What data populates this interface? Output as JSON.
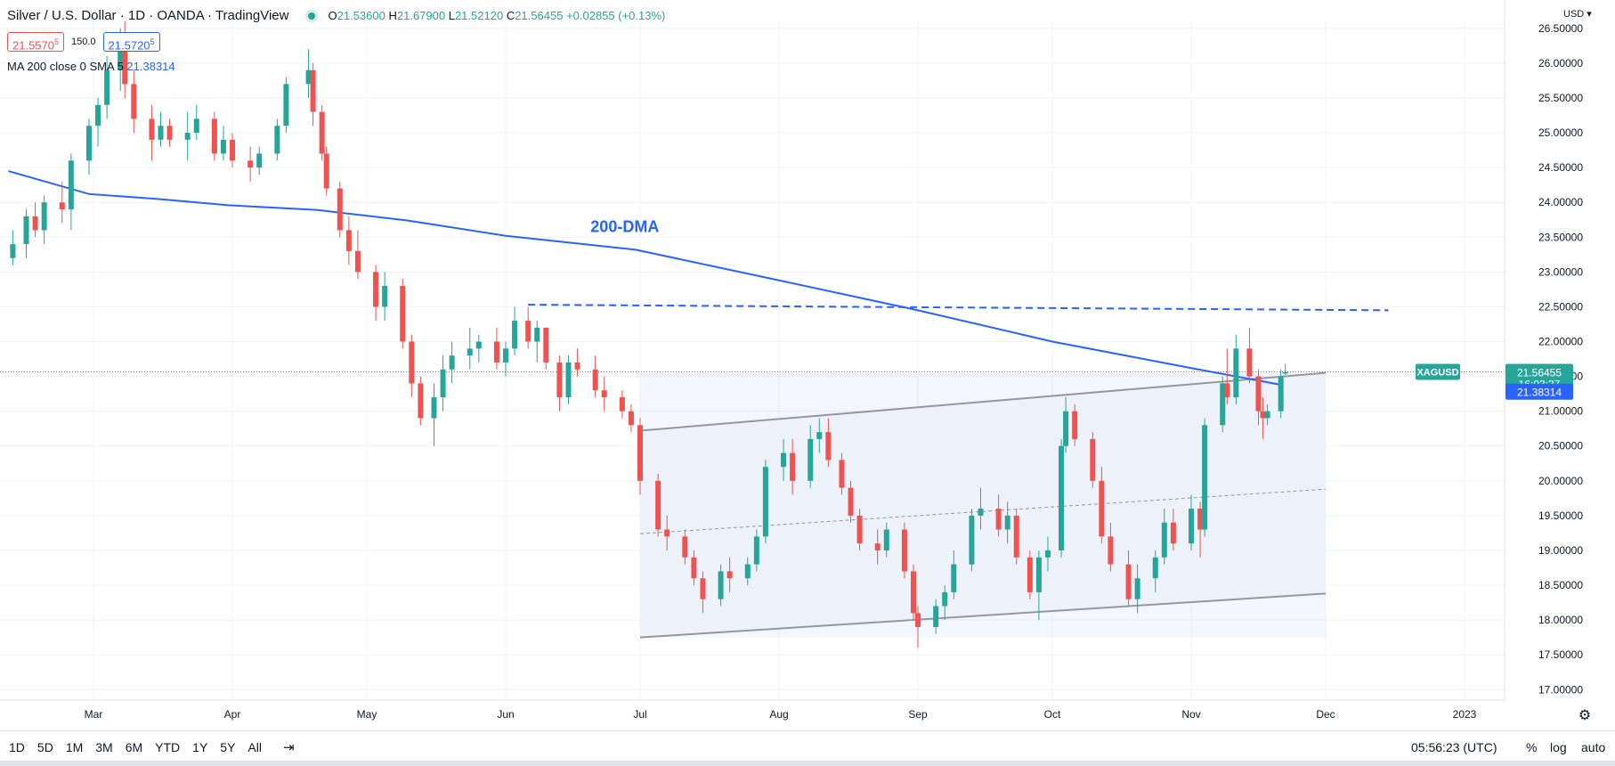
{
  "header": {
    "title": "Silver / U.S. Dollar · 1D · OANDA · TradingView",
    "open_label": "O",
    "open": "21.53600",
    "high_label": "H",
    "high": "21.67900",
    "low_label": "L",
    "low": "21.52120",
    "close_label": "C",
    "close": "21.56455",
    "change": "+0.02855 (+0.13%)"
  },
  "quote": {
    "sell": "21.5570",
    "sell_sup": "5",
    "spread": "150.0",
    "buy": "21.5720",
    "buy_sup": "5"
  },
  "ma_legend": {
    "label": "MA 200 close 0 SMA 5",
    "value": "21.38314"
  },
  "currency": "USD",
  "footer": {
    "ranges": [
      "1D",
      "5D",
      "1M",
      "3M",
      "6M",
      "YTD",
      "1Y",
      "5Y",
      "All"
    ],
    "clock": "05:56:23 (UTC)",
    "percent": "%",
    "log": "log",
    "auto": "auto"
  },
  "colors": {
    "up": "#26a69a",
    "down": "#ef5350",
    "ma": "#2962ff",
    "channel": "#9598a1"
  },
  "chart_data": {
    "type": "candlestick",
    "symbol": "XAGUSD",
    "ylim": [
      16.85,
      26.6
    ],
    "yticks": [
      "17.00000",
      "17.50000",
      "18.00000",
      "18.50000",
      "19.00000",
      "19.50000",
      "20.00000",
      "20.50000",
      "21.00000",
      "21.50000",
      "22.00000",
      "22.50000",
      "23.00000",
      "23.50000",
      "24.00000",
      "24.50000",
      "25.00000",
      "25.50000",
      "26.00000",
      "26.50000"
    ],
    "xticks": [
      {
        "label": "Mar",
        "date": "2022-03-01"
      },
      {
        "label": "Apr",
        "date": "2022-04-01"
      },
      {
        "label": "May",
        "date": "2022-05-01"
      },
      {
        "label": "Jun",
        "date": "2022-06-01"
      },
      {
        "label": "Jul",
        "date": "2022-07-01"
      },
      {
        "label": "Aug",
        "date": "2022-08-01"
      },
      {
        "label": "Sep",
        "date": "2022-09-01"
      },
      {
        "label": "Oct",
        "date": "2022-10-01"
      },
      {
        "label": "Nov",
        "date": "2022-11-01"
      },
      {
        "label": "Dec",
        "date": "2022-12-01"
      },
      {
        "label": "2023",
        "date": "2023-01-01"
      }
    ],
    "price_labels": {
      "last": "21.56455",
      "countdown": "16:03:37",
      "ma": "21.38314"
    },
    "annotation": "200-DMA",
    "ma200": [
      {
        "date": "2022-02-10",
        "value": 24.45
      },
      {
        "date": "2022-02-28",
        "value": 24.12
      },
      {
        "date": "2022-03-15",
        "value": 24.05
      },
      {
        "date": "2022-03-31",
        "value": 23.96
      },
      {
        "date": "2022-04-20",
        "value": 23.89
      },
      {
        "date": "2022-05-10",
        "value": 23.74
      },
      {
        "date": "2022-06-01",
        "value": 23.52
      },
      {
        "date": "2022-06-30",
        "value": 23.32
      },
      {
        "date": "2022-08-01",
        "value": 22.88
      },
      {
        "date": "2022-09-01",
        "value": 22.45
      },
      {
        "date": "2022-10-01",
        "value": 22.0
      },
      {
        "date": "2022-11-01",
        "value": 21.62
      },
      {
        "date": "2022-11-21",
        "value": 21.38
      }
    ],
    "resistance_dashed": {
      "from": {
        "date": "2022-06-06",
        "value": 22.53
      },
      "to": {
        "date": "2022-12-15",
        "value": 22.45
      }
    },
    "channel": {
      "upper": {
        "from": {
          "date": "2022-07-01",
          "value": 20.72
        },
        "to": {
          "date": "2022-12-01",
          "value": 21.55
        }
      },
      "lower": {
        "from": {
          "date": "2022-07-01",
          "value": 17.75
        },
        "to": {
          "date": "2022-12-01",
          "value": 18.38
        }
      },
      "mid": {
        "from": {
          "date": "2022-07-01",
          "value": 19.24
        },
        "to": {
          "date": "2022-12-01",
          "value": 19.88
        }
      }
    },
    "candles": [
      [
        "2022-02-11",
        23.2,
        23.6,
        23.1,
        23.4
      ],
      [
        "2022-02-14",
        23.4,
        23.9,
        23.2,
        23.8
      ],
      [
        "2022-02-16",
        23.8,
        24.0,
        23.5,
        23.6
      ],
      [
        "2022-02-18",
        23.6,
        24.1,
        23.4,
        24.0
      ],
      [
        "2022-02-22",
        24.0,
        24.3,
        23.7,
        23.9
      ],
      [
        "2022-02-24",
        23.9,
        24.7,
        23.6,
        24.6
      ],
      [
        "2022-02-28",
        24.6,
        25.2,
        24.4,
        25.1
      ],
      [
        "2022-03-02",
        25.1,
        25.5,
        24.8,
        25.4
      ],
      [
        "2022-03-04",
        25.4,
        26.1,
        25.2,
        25.9
      ],
      [
        "2022-03-07",
        25.9,
        26.5,
        25.6,
        26.2
      ],
      [
        "2022-03-08",
        26.2,
        26.6,
        25.5,
        25.7
      ],
      [
        "2022-03-10",
        25.7,
        25.9,
        25.0,
        25.2
      ],
      [
        "2022-03-14",
        25.2,
        25.4,
        24.6,
        24.9
      ],
      [
        "2022-03-16",
        24.9,
        25.3,
        24.8,
        25.1
      ],
      [
        "2022-03-18",
        25.1,
        25.2,
        24.8,
        24.9
      ],
      [
        "2022-03-22",
        24.9,
        25.3,
        24.6,
        25.0
      ],
      [
        "2022-03-24",
        25.0,
        25.4,
        24.9,
        25.2
      ],
      [
        "2022-03-28",
        25.2,
        25.3,
        24.6,
        24.7
      ],
      [
        "2022-03-30",
        24.7,
        25.1,
        24.6,
        24.9
      ],
      [
        "2022-04-01",
        24.9,
        25.0,
        24.5,
        24.6
      ],
      [
        "2022-04-05",
        24.6,
        24.8,
        24.3,
        24.5
      ],
      [
        "2022-04-07",
        24.5,
        24.8,
        24.4,
        24.7
      ],
      [
        "2022-04-11",
        24.7,
        25.2,
        24.6,
        25.1
      ],
      [
        "2022-04-13",
        25.1,
        25.8,
        25.0,
        25.7
      ],
      [
        "2022-04-18",
        25.7,
        26.2,
        25.5,
        25.9
      ],
      [
        "2022-04-19",
        25.9,
        26.0,
        25.1,
        25.3
      ],
      [
        "2022-04-21",
        25.3,
        25.4,
        24.6,
        24.7
      ],
      [
        "2022-04-22",
        24.7,
        24.8,
        24.1,
        24.2
      ],
      [
        "2022-04-25",
        24.2,
        24.3,
        23.5,
        23.6
      ],
      [
        "2022-04-27",
        23.6,
        23.8,
        23.1,
        23.3
      ],
      [
        "2022-04-29",
        23.3,
        23.6,
        22.9,
        23.0
      ],
      [
        "2022-05-03",
        23.0,
        23.1,
        22.3,
        22.5
      ],
      [
        "2022-05-05",
        22.5,
        23.0,
        22.3,
        22.8
      ],
      [
        "2022-05-09",
        22.8,
        22.9,
        21.9,
        22.0
      ],
      [
        "2022-05-11",
        22.0,
        22.1,
        21.2,
        21.4
      ],
      [
        "2022-05-13",
        21.4,
        21.5,
        20.8,
        20.9
      ],
      [
        "2022-05-16",
        20.9,
        21.4,
        20.5,
        21.2
      ],
      [
        "2022-05-18",
        21.2,
        21.8,
        21.0,
        21.6
      ],
      [
        "2022-05-20",
        21.6,
        22.0,
        21.4,
        21.8
      ],
      [
        "2022-05-24",
        21.8,
        22.2,
        21.6,
        21.9
      ],
      [
        "2022-05-26",
        21.9,
        22.1,
        21.7,
        22.0
      ],
      [
        "2022-05-30",
        22.0,
        22.2,
        21.6,
        21.7
      ],
      [
        "2022-06-01",
        21.7,
        22.0,
        21.5,
        21.9
      ],
      [
        "2022-06-03",
        21.9,
        22.5,
        21.8,
        22.3
      ],
      [
        "2022-06-06",
        22.3,
        22.5,
        21.9,
        22.0
      ],
      [
        "2022-06-08",
        22.0,
        22.3,
        21.7,
        22.2
      ],
      [
        "2022-06-10",
        22.2,
        22.2,
        21.6,
        21.7
      ],
      [
        "2022-06-13",
        21.7,
        21.8,
        21.0,
        21.2
      ],
      [
        "2022-06-15",
        21.2,
        21.8,
        21.1,
        21.7
      ],
      [
        "2022-06-17",
        21.7,
        21.9,
        21.5,
        21.6
      ],
      [
        "2022-06-21",
        21.6,
        21.8,
        21.2,
        21.3
      ],
      [
        "2022-06-23",
        21.3,
        21.5,
        21.0,
        21.2
      ],
      [
        "2022-06-27",
        21.2,
        21.3,
        20.9,
        21.0
      ],
      [
        "2022-06-29",
        21.0,
        21.1,
        20.7,
        20.8
      ],
      [
        "2022-07-01",
        20.8,
        20.9,
        19.8,
        20.0
      ],
      [
        "2022-07-05",
        20.0,
        20.1,
        19.2,
        19.3
      ],
      [
        "2022-07-07",
        19.3,
        19.5,
        19.0,
        19.2
      ],
      [
        "2022-07-11",
        19.2,
        19.3,
        18.8,
        18.9
      ],
      [
        "2022-07-13",
        18.9,
        19.0,
        18.5,
        18.6
      ],
      [
        "2022-07-15",
        18.6,
        18.7,
        18.1,
        18.3
      ],
      [
        "2022-07-19",
        18.3,
        18.8,
        18.2,
        18.7
      ],
      [
        "2022-07-21",
        18.7,
        18.9,
        18.4,
        18.6
      ],
      [
        "2022-07-25",
        18.6,
        18.9,
        18.5,
        18.8
      ],
      [
        "2022-07-27",
        18.8,
        19.3,
        18.7,
        19.2
      ],
      [
        "2022-07-29",
        19.2,
        20.3,
        19.1,
        20.2
      ],
      [
        "2022-08-02",
        20.2,
        20.6,
        20.0,
        20.4
      ],
      [
        "2022-08-04",
        20.4,
        20.6,
        19.8,
        20.0
      ],
      [
        "2022-08-08",
        20.0,
        20.8,
        19.9,
        20.6
      ],
      [
        "2022-08-10",
        20.6,
        20.9,
        20.4,
        20.7
      ],
      [
        "2022-08-12",
        20.7,
        20.9,
        20.2,
        20.3
      ],
      [
        "2022-08-15",
        20.3,
        20.4,
        19.8,
        19.9
      ],
      [
        "2022-08-17",
        19.9,
        20.0,
        19.4,
        19.5
      ],
      [
        "2022-08-19",
        19.5,
        19.6,
        19.0,
        19.1
      ],
      [
        "2022-08-23",
        19.1,
        19.3,
        18.8,
        19.0
      ],
      [
        "2022-08-25",
        19.0,
        19.4,
        18.9,
        19.3
      ],
      [
        "2022-08-29",
        19.3,
        19.4,
        18.6,
        18.7
      ],
      [
        "2022-08-31",
        18.7,
        18.8,
        18.0,
        18.1
      ],
      [
        "2022-09-01",
        18.1,
        18.2,
        17.6,
        17.9
      ],
      [
        "2022-09-05",
        17.9,
        18.3,
        17.8,
        18.2
      ],
      [
        "2022-09-07",
        18.2,
        18.5,
        18.0,
        18.4
      ],
      [
        "2022-09-09",
        18.4,
        19.0,
        18.3,
        18.8
      ],
      [
        "2022-09-13",
        18.8,
        19.6,
        18.7,
        19.5
      ],
      [
        "2022-09-15",
        19.5,
        19.9,
        19.3,
        19.6
      ],
      [
        "2022-09-19",
        19.6,
        19.8,
        19.2,
        19.3
      ],
      [
        "2022-09-21",
        19.3,
        19.7,
        19.1,
        19.5
      ],
      [
        "2022-09-23",
        19.5,
        19.6,
        18.8,
        18.9
      ],
      [
        "2022-09-26",
        18.9,
        19.0,
        18.3,
        18.4
      ],
      [
        "2022-09-28",
        18.4,
        19.0,
        18.0,
        18.9
      ],
      [
        "2022-09-30",
        18.9,
        19.2,
        18.7,
        19.0
      ],
      [
        "2022-10-03",
        19.0,
        20.6,
        18.9,
        20.5
      ],
      [
        "2022-10-04",
        20.5,
        21.2,
        20.4,
        21.0
      ],
      [
        "2022-10-06",
        21.0,
        21.1,
        20.5,
        20.6
      ],
      [
        "2022-10-10",
        20.6,
        20.7,
        19.9,
        20.0
      ],
      [
        "2022-10-12",
        20.0,
        20.2,
        19.1,
        19.2
      ],
      [
        "2022-10-14",
        19.2,
        19.4,
        18.7,
        18.8
      ],
      [
        "2022-10-18",
        18.8,
        19.0,
        18.2,
        18.3
      ],
      [
        "2022-10-20",
        18.3,
        18.8,
        18.1,
        18.6
      ],
      [
        "2022-10-24",
        18.6,
        19.0,
        18.4,
        18.9
      ],
      [
        "2022-10-26",
        18.9,
        19.6,
        18.8,
        19.4
      ],
      [
        "2022-10-28",
        19.4,
        19.6,
        19.0,
        19.1
      ],
      [
        "2022-11-01",
        19.1,
        19.8,
        19.0,
        19.6
      ],
      [
        "2022-11-03",
        19.6,
        19.7,
        18.9,
        19.3
      ],
      [
        "2022-11-04",
        19.3,
        20.9,
        19.2,
        20.8
      ],
      [
        "2022-11-08",
        20.8,
        21.5,
        20.7,
        21.4
      ],
      [
        "2022-11-09",
        21.4,
        21.9,
        21.1,
        21.2
      ],
      [
        "2022-11-11",
        21.2,
        22.1,
        21.1,
        21.9
      ],
      [
        "2022-11-14",
        21.9,
        22.2,
        21.4,
        21.5
      ],
      [
        "2022-11-16",
        21.5,
        21.6,
        20.8,
        21.0
      ],
      [
        "2022-11-17",
        21.0,
        21.2,
        20.6,
        20.9
      ],
      [
        "2022-11-18",
        20.9,
        21.1,
        20.8,
        21.0
      ],
      [
        "2022-11-21",
        21.0,
        21.6,
        20.9,
        21.5
      ],
      [
        "2022-11-22",
        21.54,
        21.68,
        21.52,
        21.56
      ]
    ]
  }
}
